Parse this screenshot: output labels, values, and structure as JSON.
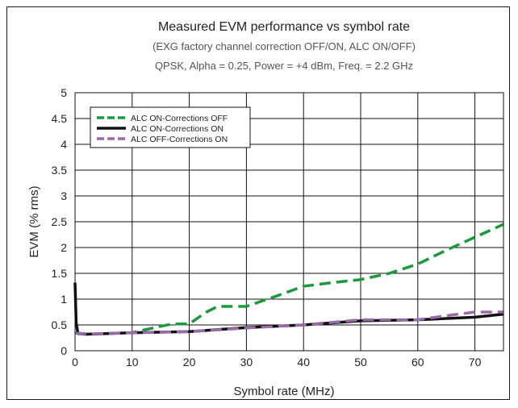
{
  "chart_data": {
    "type": "line",
    "title": "Measured EVM performance vs symbol rate",
    "subtitle_1": "(EXG factory channel correction OFF/ON, ALC ON/OFF)",
    "subtitle_2": "QPSK, Alpha = 0.25, Power = +4 dBm, Freq. = 2.2 GHz",
    "xlabel": "Symbol rate (MHz)",
    "ylabel": "EVM (% rms)",
    "xlim": [
      0,
      75
    ],
    "ylim": [
      0,
      5
    ],
    "xticks": [
      0,
      10,
      20,
      30,
      40,
      50,
      60,
      70
    ],
    "yticks": [
      0,
      0.5,
      1,
      1.5,
      2,
      2.5,
      3,
      3.5,
      4,
      4.5,
      5
    ],
    "grid": true,
    "legend_position": "top-left",
    "series": [
      {
        "name": "ALC ON-Corrections OFF",
        "color": "#1a9a3c",
        "dash": "dashed",
        "x": [
          0,
          0.5,
          2,
          5,
          10,
          14,
          17,
          20,
          23,
          25,
          30,
          35,
          40,
          45,
          50,
          55,
          60,
          65,
          70,
          75
        ],
        "y": [
          0.35,
          0.33,
          0.32,
          0.33,
          0.35,
          0.45,
          0.52,
          0.52,
          0.75,
          0.86,
          0.86,
          1.05,
          1.25,
          1.32,
          1.38,
          1.5,
          1.68,
          1.95,
          2.2,
          2.45
        ]
      },
      {
        "name": "ALC ON-Corrections ON",
        "color": "#111111",
        "dash": "solid",
        "x": [
          0,
          0.2,
          0.5,
          2,
          5,
          10,
          20,
          30,
          40,
          50,
          60,
          70,
          75
        ],
        "y": [
          1.32,
          0.55,
          0.34,
          0.32,
          0.33,
          0.35,
          0.37,
          0.45,
          0.5,
          0.58,
          0.6,
          0.65,
          0.71
        ]
      },
      {
        "name": "ALC OFF-Corrections ON",
        "color": "#9b6aa8",
        "dash": "dashed",
        "x": [
          0,
          2,
          5,
          10,
          20,
          30,
          40,
          50,
          60,
          65,
          70,
          75
        ],
        "y": [
          0.34,
          0.33,
          0.33,
          0.35,
          0.37,
          0.44,
          0.5,
          0.6,
          0.6,
          0.68,
          0.75,
          0.75
        ]
      }
    ]
  }
}
